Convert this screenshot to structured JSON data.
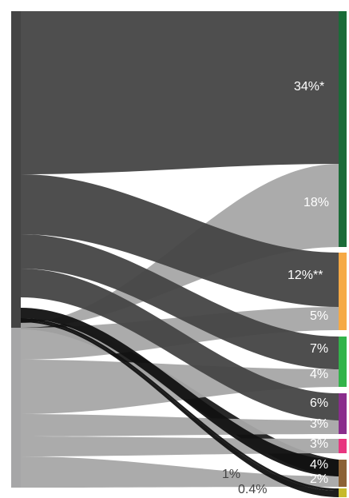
{
  "chart_data": {
    "type": "sankey",
    "title": "",
    "sources": [
      {
        "id": "upper",
        "label": "",
        "color": "#444444"
      },
      {
        "id": "lower",
        "label": "",
        "color": "#a6a6a7"
      }
    ],
    "targets": [
      {
        "id": "green",
        "color": "#1b6b38",
        "labels": [
          "34%*",
          "18%"
        ]
      },
      {
        "id": "orange",
        "color": "#f6a945",
        "labels": [
          "12%**",
          "5%"
        ]
      },
      {
        "id": "light-green",
        "color": "#33b34a",
        "labels": [
          "7%",
          "4%"
        ]
      },
      {
        "id": "purple",
        "color": "#8a2d8c",
        "labels": [
          "6%",
          "3%"
        ]
      },
      {
        "id": "pink",
        "color": "#e8357f",
        "labels": [
          "3%"
        ]
      },
      {
        "id": "brown",
        "color": "#8c6236",
        "labels": [
          "4%",
          "2%"
        ]
      },
      {
        "id": "yellow",
        "color": "#c7ba2c",
        "labels": []
      }
    ],
    "flows": [
      {
        "source": "upper",
        "target": "green",
        "value": 34,
        "label": "34%*"
      },
      {
        "source": "lower",
        "target": "green",
        "value": 18,
        "label": "18%"
      },
      {
        "source": "upper",
        "target": "orange",
        "value": 12,
        "label": "12%**"
      },
      {
        "source": "lower",
        "target": "orange",
        "value": 5,
        "label": "5%"
      },
      {
        "source": "upper",
        "target": "light-green",
        "value": 7,
        "label": "7%"
      },
      {
        "source": "lower",
        "target": "light-green",
        "value": 4,
        "label": "4%"
      },
      {
        "source": "upper",
        "target": "purple",
        "value": 6,
        "label": "6%"
      },
      {
        "source": "lower",
        "target": "purple",
        "value": 3,
        "label": "3%"
      },
      {
        "source": "lower",
        "target": "pink",
        "value": 3,
        "label": "3%"
      },
      {
        "source": "upper",
        "target": "brown",
        "value": 4,
        "label": "4%"
      },
      {
        "source": "lower",
        "target": "brown",
        "value": 2,
        "label": "2%"
      },
      {
        "source": "upper",
        "target": "yellow",
        "value": 1,
        "label": "1%"
      },
      {
        "source": "upper",
        "target": "yellow",
        "value": 0.4,
        "label": "0.4%"
      }
    ]
  }
}
